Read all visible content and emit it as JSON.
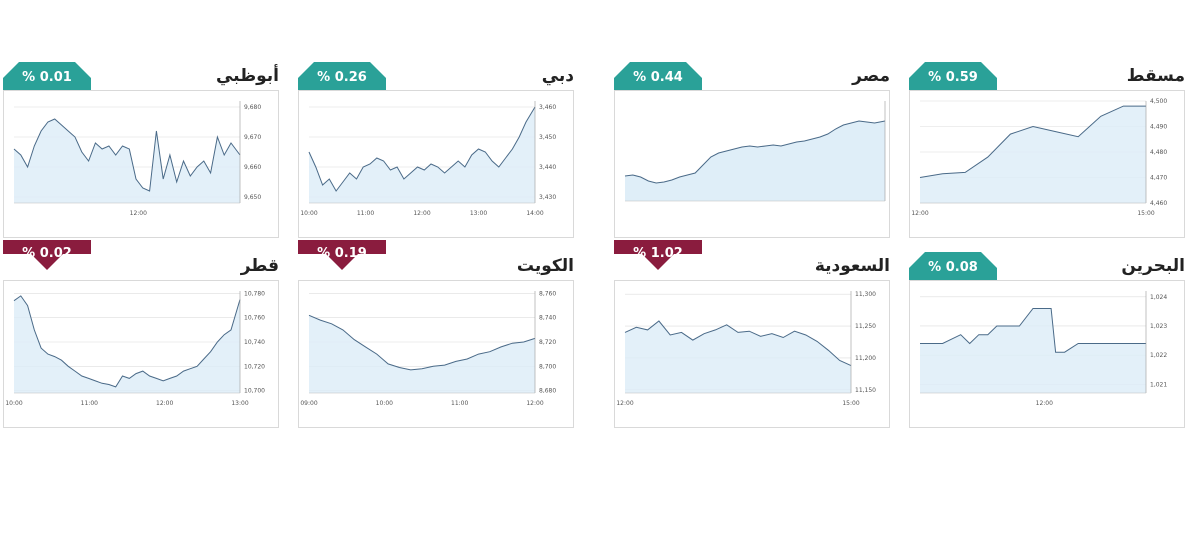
{
  "colors": {
    "up": "#2aa198",
    "down": "#8a1c3e",
    "fill": "#dcecf7",
    "line": "#4a6a88",
    "grid": "#dddddd"
  },
  "chart_data": [
    {
      "type": "area",
      "market": "مسقط",
      "change": "% 0.59",
      "direction": "up",
      "x_ticks": [
        "12:00",
        "15:00"
      ],
      "y_ticks": [
        "4,460",
        "4,470",
        "4,480",
        "4,490",
        "4,500"
      ],
      "ylim": [
        4460,
        4500
      ],
      "x": [
        0,
        0.1,
        0.2,
        0.3,
        0.4,
        0.5,
        0.6,
        0.7,
        0.8,
        0.9,
        1
      ],
      "y": [
        4470,
        4471.5,
        4472,
        4478,
        4487,
        4490,
        4488,
        4486,
        4494,
        4498,
        4498
      ]
    },
    {
      "type": "area",
      "market": "مصر",
      "change": "% 0.44",
      "direction": "up",
      "x_ticks": [],
      "y_ticks": [],
      "ylim": [
        0,
        100
      ],
      "x": [
        0,
        0.03,
        0.06,
        0.09,
        0.12,
        0.15,
        0.18,
        0.21,
        0.24,
        0.27,
        0.3,
        0.33,
        0.36,
        0.39,
        0.42,
        0.45,
        0.48,
        0.51,
        0.54,
        0.57,
        0.6,
        0.63,
        0.66,
        0.69,
        0.72,
        0.75,
        0.78,
        0.81,
        0.84,
        0.87,
        0.9,
        0.93,
        0.96,
        1
      ],
      "y": [
        25,
        26,
        24,
        20,
        18,
        19,
        21,
        24,
        26,
        28,
        36,
        44,
        48,
        50,
        52,
        54,
        55,
        54,
        55,
        56,
        55,
        57,
        59,
        60,
        62,
        64,
        67,
        72,
        76,
        78,
        80,
        79,
        78,
        80
      ]
    },
    {
      "type": "line",
      "market": "دبي",
      "change": "% 0.26",
      "direction": "up",
      "x_ticks": [
        "10:00",
        "11:00",
        "12:00",
        "13:00",
        "14:00"
      ],
      "y_ticks": [
        "3,430",
        "3,440",
        "3,450",
        "3,460"
      ],
      "ylim": [
        3428,
        3462
      ],
      "x": [
        0,
        0.03,
        0.06,
        0.09,
        0.12,
        0.15,
        0.18,
        0.21,
        0.24,
        0.27,
        0.3,
        0.33,
        0.36,
        0.39,
        0.42,
        0.45,
        0.48,
        0.51,
        0.54,
        0.57,
        0.6,
        0.63,
        0.66,
        0.69,
        0.72,
        0.75,
        0.78,
        0.81,
        0.84,
        0.87,
        0.9,
        0.93,
        0.96,
        1
      ],
      "y": [
        3445,
        3440,
        3434,
        3436,
        3432,
        3435,
        3438,
        3436,
        3440,
        3441,
        3443,
        3442,
        3439,
        3440,
        3436,
        3438,
        3440,
        3439,
        3441,
        3440,
        3438,
        3440,
        3442,
        3440,
        3444,
        3446,
        3445,
        3442,
        3440,
        3443,
        3446,
        3450,
        3455,
        3460
      ]
    },
    {
      "type": "line",
      "market": "أبوظبي",
      "change": "% 0.01",
      "direction": "up",
      "x_ticks": [
        "12:00"
      ],
      "y_ticks": [
        "9,650",
        "9,660",
        "9,670",
        "9,680"
      ],
      "ylim": [
        9648,
        9682
      ],
      "x": [
        0,
        0.03,
        0.06,
        0.09,
        0.12,
        0.15,
        0.18,
        0.21,
        0.24,
        0.27,
        0.3,
        0.33,
        0.36,
        0.39,
        0.42,
        0.45,
        0.48,
        0.51,
        0.54,
        0.57,
        0.6,
        0.63,
        0.66,
        0.69,
        0.72,
        0.75,
        0.78,
        0.81,
        0.84,
        0.87,
        0.9,
        0.93,
        0.96,
        1
      ],
      "y": [
        9666,
        9664,
        9660,
        9667,
        9672,
        9675,
        9676,
        9674,
        9672,
        9670,
        9665,
        9662,
        9668,
        9666,
        9667,
        9664,
        9667,
        9666,
        9656,
        9653,
        9652,
        9672,
        9656,
        9664,
        9655,
        9662,
        9657,
        9660,
        9662,
        9658,
        9670,
        9664,
        9668,
        9664
      ]
    },
    {
      "type": "line",
      "market": "البحرين",
      "change": "% 0.08",
      "direction": "up",
      "x_ticks": [
        "12:00"
      ],
      "y_ticks": [
        "1,021",
        "1,022",
        "1,023",
        "1,024"
      ],
      "ylim": [
        1020.7,
        1024.2
      ],
      "x": [
        0,
        0.1,
        0.18,
        0.22,
        0.26,
        0.3,
        0.34,
        0.38,
        0.44,
        0.5,
        0.52,
        0.58,
        0.6,
        0.64,
        0.7,
        1
      ],
      "y": [
        1022.4,
        1022.4,
        1022.7,
        1022.4,
        1022.7,
        1022.7,
        1023,
        1023,
        1023,
        1023.6,
        1023.6,
        1023.6,
        1022.1,
        1022.1,
        1022.4,
        1022.4
      ]
    },
    {
      "type": "line",
      "market": "السعودية",
      "change": "% 1.02",
      "direction": "down",
      "x_ticks": [
        "12:00",
        "15:00"
      ],
      "y_ticks": [
        "11,150",
        "11,200",
        "11,250",
        "11,300"
      ],
      "ylim": [
        11145,
        11305
      ],
      "x": [
        0,
        0.05,
        0.1,
        0.15,
        0.2,
        0.25,
        0.3,
        0.35,
        0.4,
        0.45,
        0.5,
        0.55,
        0.6,
        0.65,
        0.7,
        0.75,
        0.8,
        0.85,
        0.9,
        0.95,
        1
      ],
      "y": [
        11240,
        11248,
        11244,
        11258,
        11236,
        11240,
        11228,
        11238,
        11244,
        11252,
        11240,
        11242,
        11234,
        11238,
        11232,
        11242,
        11236,
        11226,
        11212,
        11196,
        11188
      ]
    },
    {
      "type": "line",
      "market": "الكويت",
      "change": "% 0.19",
      "direction": "down",
      "x_ticks": [
        "09:00",
        "10:00",
        "11:00",
        "12:00"
      ],
      "y_ticks": [
        "8,680",
        "8,700",
        "8,720",
        "8,740",
        "8,760"
      ],
      "ylim": [
        8678,
        8762
      ],
      "x": [
        0,
        0.05,
        0.1,
        0.15,
        0.2,
        0.25,
        0.3,
        0.35,
        0.4,
        0.45,
        0.5,
        0.55,
        0.6,
        0.65,
        0.7,
        0.75,
        0.8,
        0.85,
        0.9,
        0.95,
        1
      ],
      "y": [
        8742,
        8738,
        8735,
        8730,
        8722,
        8716,
        8710,
        8702,
        8699,
        8697,
        8698,
        8700,
        8701,
        8704,
        8706,
        8710,
        8712,
        8716,
        8719,
        8720,
        8723
      ]
    },
    {
      "type": "line",
      "market": "قطر",
      "change": "% 0.02",
      "direction": "down",
      "x_ticks": [
        "10:00",
        "11:00",
        "12:00",
        "13:00"
      ],
      "y_ticks": [
        "10,700",
        "10,720",
        "10,740",
        "10,760",
        "10,780"
      ],
      "ylim": [
        10698,
        10782
      ],
      "x": [
        0,
        0.03,
        0.06,
        0.09,
        0.12,
        0.15,
        0.18,
        0.21,
        0.24,
        0.27,
        0.3,
        0.33,
        0.36,
        0.39,
        0.42,
        0.45,
        0.48,
        0.51,
        0.54,
        0.57,
        0.6,
        0.63,
        0.66,
        0.69,
        0.72,
        0.75,
        0.78,
        0.81,
        0.84,
        0.87,
        0.9,
        0.93,
        0.96,
        1
      ],
      "y": [
        10774,
        10778,
        10770,
        10750,
        10735,
        10730,
        10728,
        10725,
        10720,
        10716,
        10712,
        10710,
        10708,
        10706,
        10705,
        10703,
        10712,
        10710,
        10714,
        10716,
        10712,
        10710,
        10708,
        10710,
        10712,
        10716,
        10718,
        10720,
        10726,
        10732,
        10740,
        10746,
        10750,
        10775
      ]
    }
  ]
}
